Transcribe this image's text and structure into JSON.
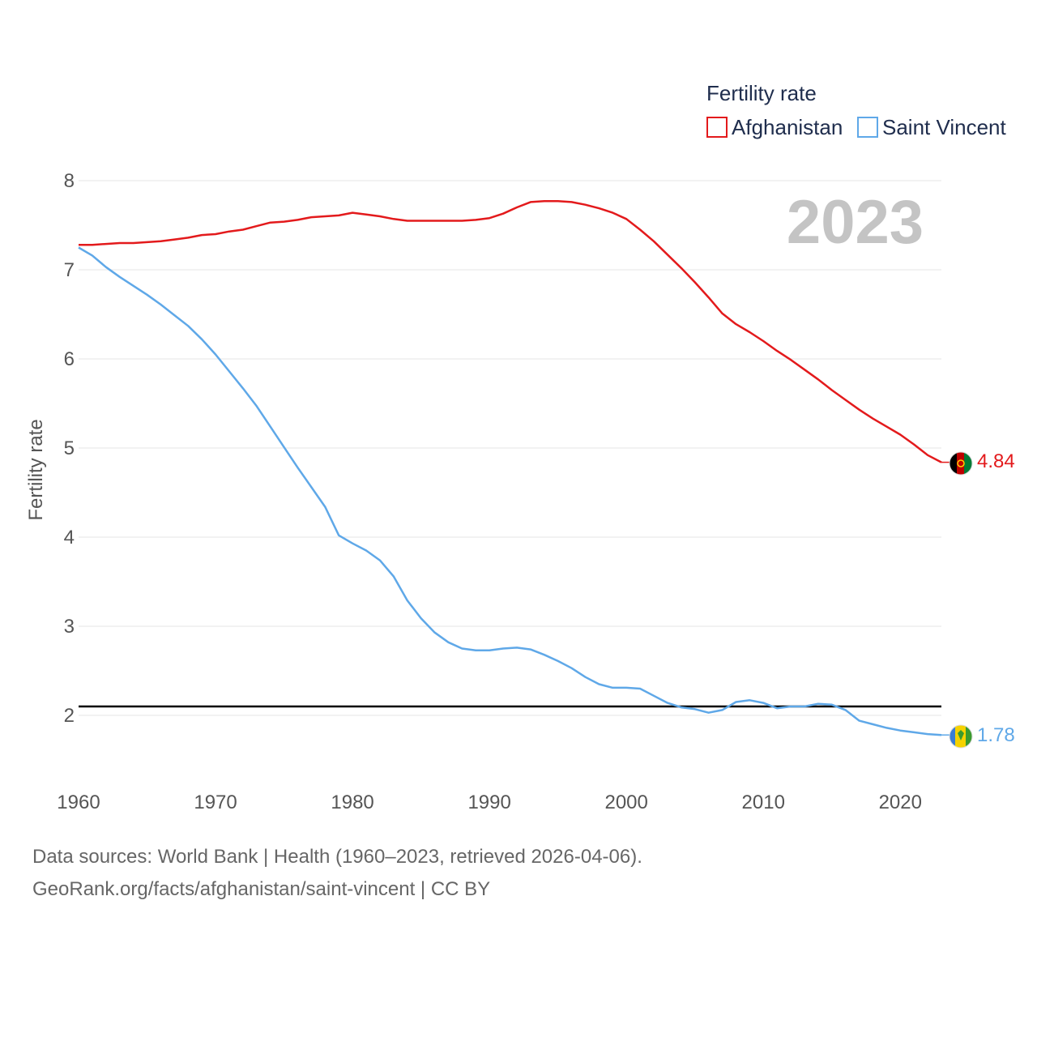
{
  "chart_data": {
    "type": "line",
    "ylabel": "Fertility rate",
    "xlabel": "",
    "xlim": [
      1960,
      2023
    ],
    "ylim": [
      1.3,
      8
    ],
    "yticks": [
      2,
      3,
      4,
      5,
      6,
      7,
      8
    ],
    "xticks": [
      1960,
      1970,
      1980,
      1990,
      2000,
      2010,
      2020
    ],
    "year_label": "2023",
    "legend_title": "Fertility rate",
    "legend_position": "top-right",
    "reference_line": 2.1,
    "series": [
      {
        "name": "Afghanistan",
        "color": "#e31a1c",
        "end_label": "4.84",
        "flag": "afghanistan-flag-icon",
        "values": [
          7.28,
          7.28,
          7.29,
          7.3,
          7.3,
          7.31,
          7.32,
          7.34,
          7.36,
          7.39,
          7.4,
          7.43,
          7.45,
          7.49,
          7.53,
          7.54,
          7.56,
          7.59,
          7.6,
          7.61,
          7.64,
          7.62,
          7.6,
          7.57,
          7.55,
          7.55,
          7.55,
          7.55,
          7.55,
          7.56,
          7.58,
          7.63,
          7.7,
          7.76,
          7.77,
          7.77,
          7.76,
          7.73,
          7.69,
          7.64,
          7.57,
          7.45,
          7.32,
          7.17,
          7.02,
          6.86,
          6.69,
          6.51,
          6.39,
          6.3,
          6.2,
          6.09,
          5.99,
          5.88,
          5.77,
          5.65,
          5.54,
          5.43,
          5.33,
          5.24,
          5.15,
          5.04,
          4.92,
          4.84
        ]
      },
      {
        "name": "Saint Vincent",
        "color": "#5fa8e8",
        "end_label": "1.78",
        "flag": "saint-vincent-flag-icon",
        "values": [
          7.25,
          7.16,
          7.03,
          6.92,
          6.82,
          6.72,
          6.61,
          6.49,
          6.37,
          6.22,
          6.05,
          5.86,
          5.67,
          5.47,
          5.24,
          5.01,
          4.78,
          4.56,
          4.34,
          4.02,
          3.93,
          3.85,
          3.74,
          3.56,
          3.29,
          3.09,
          2.93,
          2.82,
          2.75,
          2.73,
          2.73,
          2.75,
          2.76,
          2.74,
          2.68,
          2.61,
          2.53,
          2.43,
          2.35,
          2.31,
          2.31,
          2.3,
          2.22,
          2.14,
          2.09,
          2.07,
          2.03,
          2.06,
          2.15,
          2.17,
          2.14,
          2.08,
          2.1,
          2.1,
          2.13,
          2.12,
          2.06,
          1.94,
          1.9,
          1.86,
          1.83,
          1.81,
          1.79,
          1.78
        ]
      }
    ]
  },
  "footer": {
    "line1": "Data sources: World Bank | Health (1960–2023, retrieved 2026-04-06).",
    "line2": "GeoRank.org/facts/afghanistan/saint-vincent | CC BY"
  }
}
